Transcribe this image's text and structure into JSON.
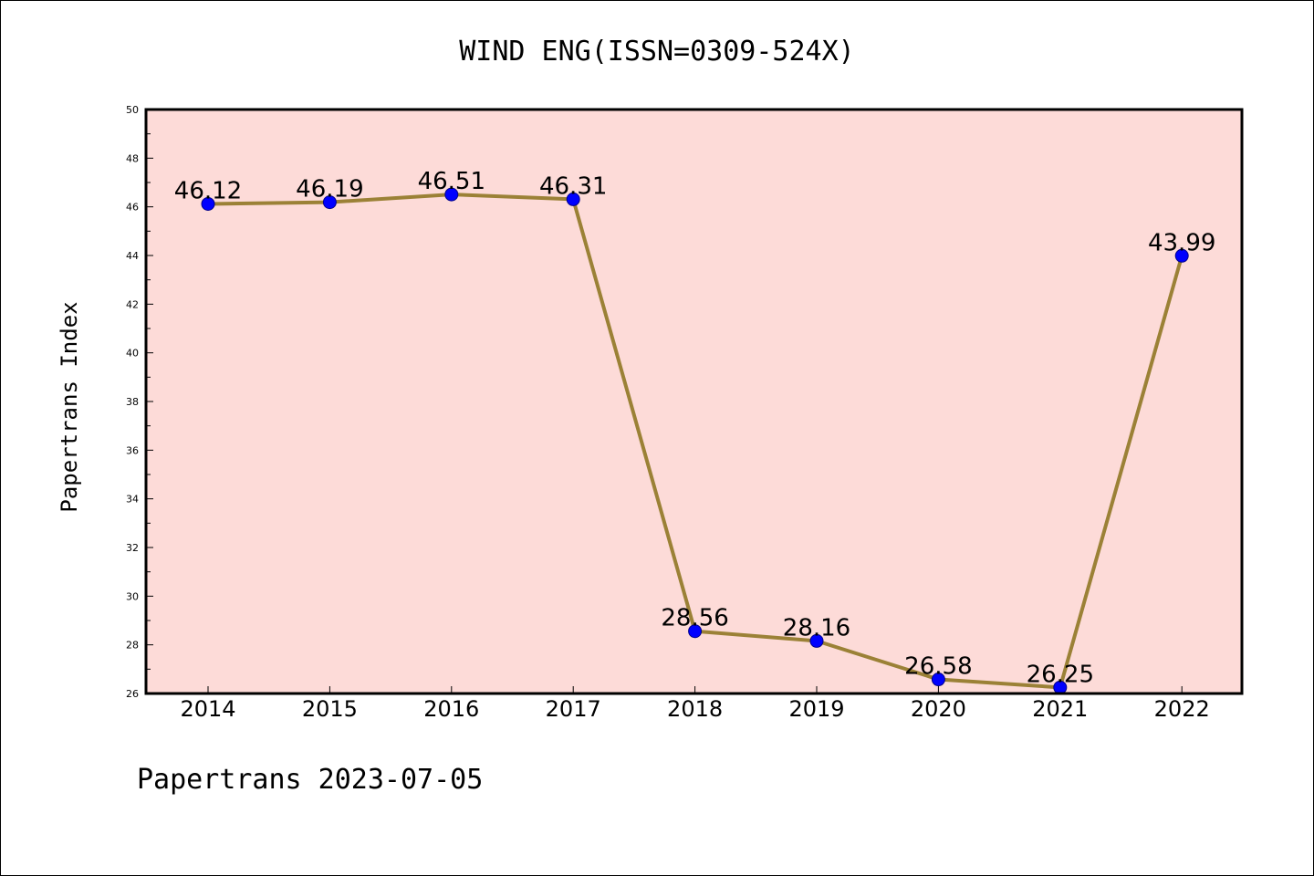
{
  "chart_data": {
    "type": "line",
    "title": "WIND ENG(ISSN=0309-524X)",
    "ylabel": "Papertrans Index",
    "xlabel": "",
    "categories": [
      "2014",
      "2015",
      "2016",
      "2017",
      "2018",
      "2019",
      "2020",
      "2021",
      "2022"
    ],
    "series": [
      {
        "values": [
          46.12,
          46.19,
          46.51,
          46.31,
          28.56,
          28.16,
          26.58,
          26.25,
          43.99
        ],
        "labels": [
          "46.12",
          "46.19",
          "46.51",
          "46.31",
          "28.56",
          "28.16",
          "26.58",
          "26.25",
          "43.99"
        ],
        "line_color": "#9b8136",
        "marker_color": "#0000ff"
      }
    ],
    "ylim": [
      26,
      50
    ],
    "yticks": [
      "26",
      "28",
      "30",
      "32",
      "34",
      "36",
      "38",
      "40",
      "42",
      "44",
      "46",
      "48",
      "50"
    ],
    "plot_background": "#fddbd8",
    "grid": false,
    "legend": "none"
  },
  "footer": {
    "text": "Papertrans 2023-07-05"
  }
}
